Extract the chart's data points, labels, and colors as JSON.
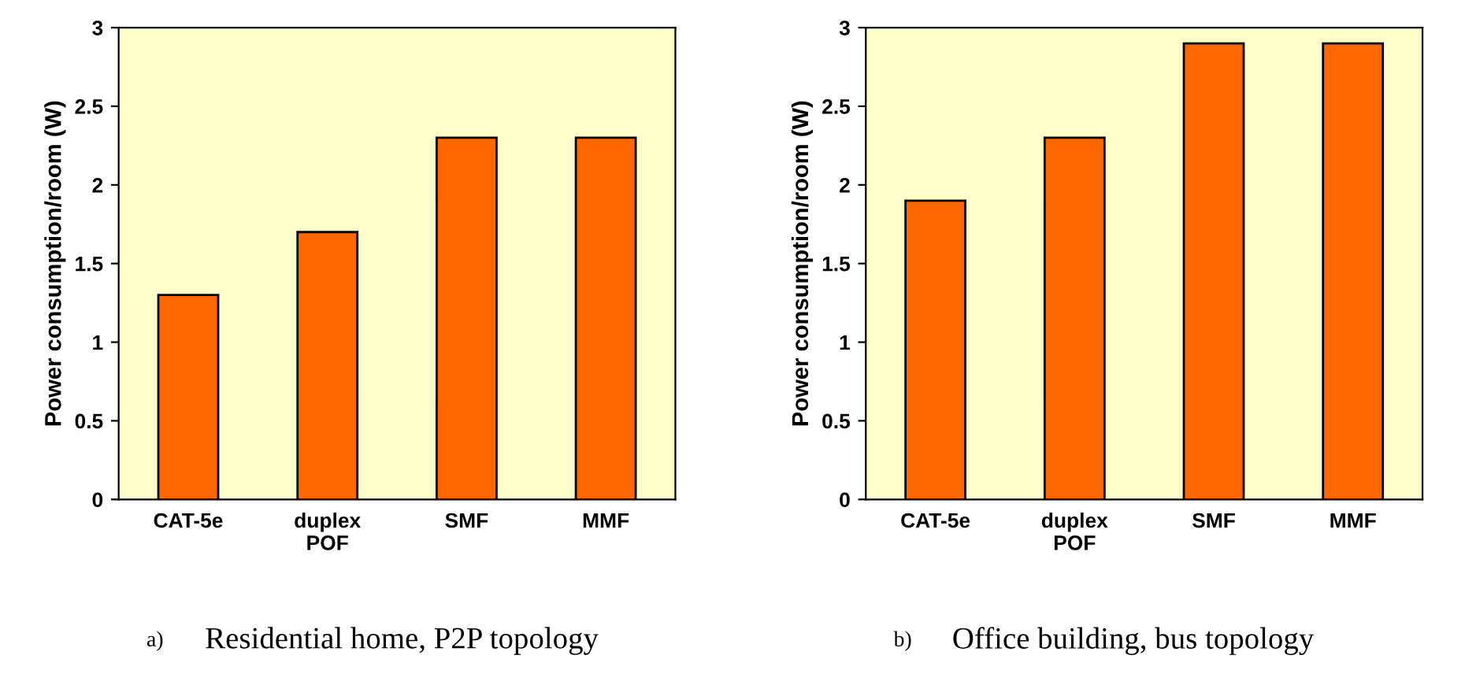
{
  "chart_data": [
    {
      "type": "bar",
      "categories": [
        "CAT-5e",
        "duplex\nPOF",
        "SMF",
        "MMF"
      ],
      "values": [
        1.3,
        1.7,
        2.3,
        2.3
      ],
      "color": "#ff6600",
      "ylabel": "Power consumption/room (W)",
      "ylim": [
        0,
        3
      ],
      "yticks": [
        0,
        0.5,
        1,
        1.5,
        2,
        2.5,
        3
      ],
      "grid": false,
      "annotations": [
        "a)",
        "Residential home, P2P topology"
      ]
    },
    {
      "type": "bar",
      "categories": [
        "CAT-5e",
        "duplex\nPOF",
        "SMF",
        "MMF"
      ],
      "values": [
        1.9,
        2.3,
        2.9,
        2.9
      ],
      "color": "#ff6600",
      "ylabel": "Power consumption/room (W)",
      "ylim": [
        0,
        3
      ],
      "yticks": [
        0,
        0.5,
        1,
        1.5,
        2,
        2.5,
        3
      ],
      "grid": false,
      "annotations": [
        "b)",
        "Office building, bus topology"
      ]
    }
  ]
}
